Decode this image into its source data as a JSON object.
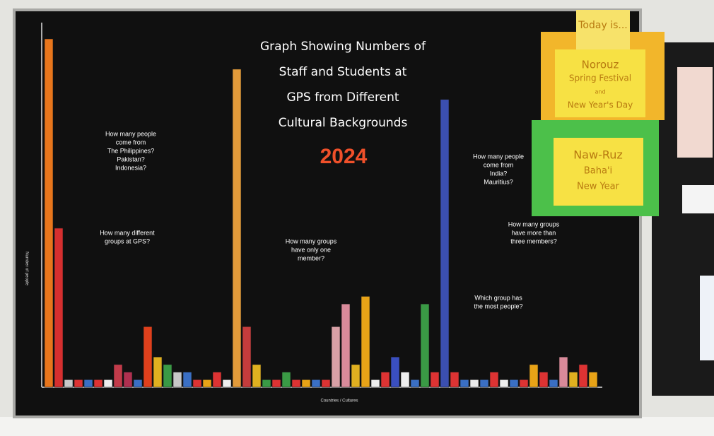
{
  "board": {
    "title_lines": [
      "Graph Showing Numbers of",
      "Staff and Students at",
      "GPS from Different",
      "Cultural Backgrounds"
    ],
    "year": "2024",
    "questions": [
      [
        "How many people",
        "come from",
        "The Philippines?",
        "Pakistan?",
        "Indonesia?"
      ],
      [
        "How many different",
        "groups at GPS?"
      ],
      [
        "How many groups",
        "have only one",
        "member?"
      ],
      [
        "How many people",
        "come from",
        "India?",
        "Mauritius?"
      ],
      [
        "How many groups",
        "have more than",
        "three members?"
      ],
      [
        "Which group has",
        "the most people?"
      ]
    ],
    "y_axis_label": "Number of people",
    "x_axis_label": "Countries / Cultures"
  },
  "chart_data": {
    "type": "bar",
    "values": [
      46,
      21,
      1,
      1,
      1,
      1,
      1,
      3,
      2,
      1,
      8,
      4,
      3,
      2,
      2,
      1,
      1,
      2,
      1,
      42,
      8,
      3,
      1,
      1,
      2,
      1,
      1,
      1,
      1,
      8,
      11,
      3,
      12,
      1,
      2,
      4,
      2,
      1,
      11,
      2,
      38,
      2,
      1,
      1,
      1,
      2,
      1,
      1,
      1,
      3,
      2,
      1,
      4,
      2,
      3,
      2
    ],
    "colors": [
      "#e8761c",
      "#d62f2f",
      "#c8c8c8",
      "#dd3333",
      "#3a6fc4",
      "#dd3333",
      "#eeeeee",
      "#c23b4a",
      "#b03050",
      "#3a6fc4",
      "#e0401c",
      "#e0b020",
      "#3a9a45",
      "#c8c8c8",
      "#3a6fc4",
      "#dd3333",
      "#e8a317",
      "#dd3333",
      "#eeeeee",
      "#e39b3a",
      "#c43c3c",
      "#e0b020",
      "#3a9a45",
      "#dd3333",
      "#3a9a45",
      "#dd3333",
      "#e8a317",
      "#3a6fc4",
      "#dd3333",
      "#d9a0a6",
      "#d98a9a",
      "#e0b020",
      "#e8a317",
      "#eeeeee",
      "#dd3333",
      "#3a4fc0",
      "#eeeeee",
      "#3a6fc4",
      "#3a9a45",
      "#dd3333",
      "#3b4fb0",
      "#dd3333",
      "#3a6fc4",
      "#eeeeee",
      "#3a6fc4",
      "#dd3333",
      "#eeeeee",
      "#3a6fc4",
      "#dd3333",
      "#e8a317",
      "#dd3333",
      "#3a6fc4",
      "#d98a9a",
      "#e0b020",
      "#dd3333",
      "#e8a317"
    ],
    "ylim": [
      0,
      46
    ]
  },
  "signs": {
    "today": "Today is...",
    "norouz": [
      "Norouz",
      "Spring Festival",
      "and",
      "New Year's Day"
    ],
    "nawruz": [
      "Naw-Ruz",
      "Baha'i",
      "New Year"
    ]
  }
}
